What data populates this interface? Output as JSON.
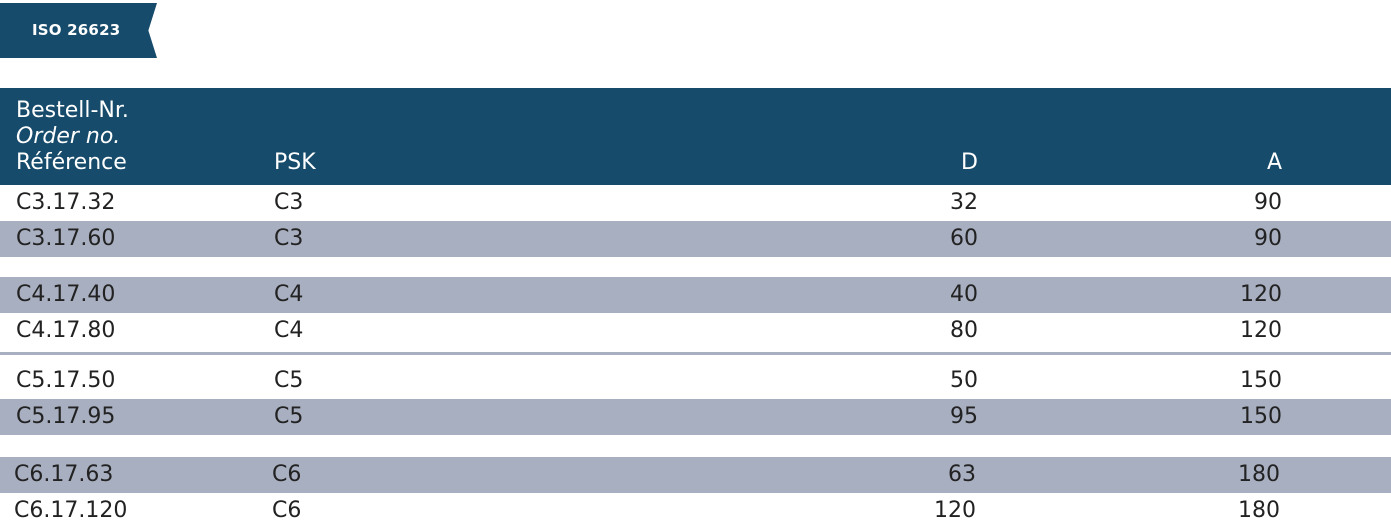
{
  "badge": "ISO 26623",
  "header": {
    "col1_de": "Bestell-Nr.",
    "col1_en": "Order no.",
    "col1_fr": "Référence",
    "col2": "PSK",
    "col3": "D",
    "col4": "A"
  },
  "colors": {
    "header_bg": "#174b6b",
    "row_shade": "#a8afc0"
  },
  "rows": [
    [
      "C3.17.32",
      "C3",
      "32",
      "90"
    ],
    [
      "C3.17.60",
      "C3",
      "60",
      "90"
    ],
    [
      "C4.17.40",
      "C4",
      "40",
      "120"
    ],
    [
      "C4.17.80",
      "C4",
      "80",
      "120"
    ],
    [
      "C5.17.50",
      "C5",
      "50",
      "150"
    ],
    [
      "C5.17.95",
      "C5",
      "95",
      "150"
    ],
    [
      "C6.17.63",
      "C6",
      "63",
      "180"
    ],
    [
      "C6.17.120",
      "C6",
      "120",
      "180"
    ]
  ]
}
